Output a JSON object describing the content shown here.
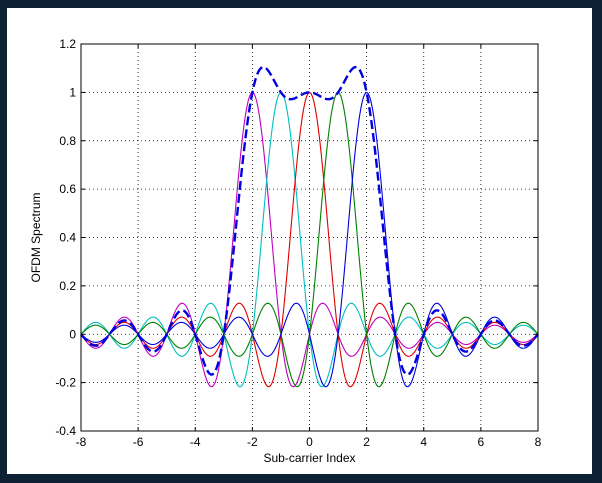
{
  "figure": {
    "background": "#0d2134",
    "panel_color": "#ffffff"
  },
  "chart_data": {
    "type": "line",
    "title": "",
    "xlabel": "Sub-carrier Index",
    "ylabel": "OFDM Spectrum",
    "xlim": [
      -8,
      8
    ],
    "ylim": [
      -0.4,
      1.2
    ],
    "xticks": [
      -8,
      -6,
      -4,
      -2,
      0,
      2,
      4,
      6,
      8
    ],
    "yticks": [
      -0.4,
      -0.2,
      0,
      0.2,
      0.4,
      0.6,
      0.8,
      1,
      1.2
    ],
    "grid": true,
    "legend": "none",
    "function": "sinc",
    "x_samples": 321,
    "series": [
      {
        "center": -2,
        "color": "#c000c0",
        "style": "solid"
      },
      {
        "center": -1,
        "color": "#00c0c0",
        "style": "solid"
      },
      {
        "center": 0,
        "color": "#e00000",
        "style": "solid"
      },
      {
        "center": 1,
        "color": "#008000",
        "style": "solid"
      },
      {
        "center": 2,
        "color": "#0000e0",
        "style": "solid"
      },
      {
        "centers": [
          -2,
          -1,
          0,
          1,
          2
        ],
        "color": "#0000e0",
        "style": "dashed",
        "combined": true
      }
    ]
  }
}
